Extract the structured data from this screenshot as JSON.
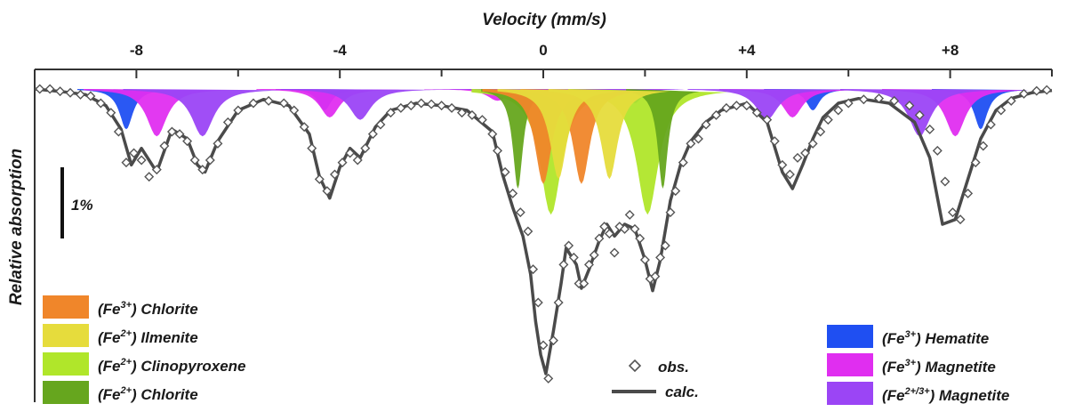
{
  "chart_data": {
    "type": "area",
    "title": "",
    "xlabel": "Velocity (mm/s)",
    "ylabel": "Relative absorption",
    "xlim": [
      -10,
      10
    ],
    "ylim": [
      0,
      6.6
    ],
    "x_ticks": [
      -8,
      -4,
      0,
      4,
      8
    ],
    "x_tick_labels": [
      "-8",
      "-4",
      "0",
      "+4",
      "+8"
    ],
    "x_minor_ticks": [
      -10,
      -6,
      -2,
      2,
      6,
      10
    ],
    "scale_bar": {
      "label": "1%",
      "value": 1
    },
    "legend_left": [
      {
        "ion": "Fe",
        "charge": "3+",
        "name": "Chlorite",
        "color": "#f0862a"
      },
      {
        "ion": "Fe",
        "charge": "2+",
        "name": "Ilmenite",
        "color": "#e6dc3c"
      },
      {
        "ion": "Fe",
        "charge": "2+",
        "name": "Clinopyroxene",
        "color": "#b0e62a"
      },
      {
        "ion": "Fe",
        "charge": "2+",
        "name": "Chlorite",
        "color": "#66a61e"
      }
    ],
    "legend_right": [
      {
        "ion": "Fe",
        "charge": "3+",
        "name": "Hematite",
        "color": "#1f4ff2"
      },
      {
        "ion": "Fe",
        "charge": "3+",
        "name": "Magnetite",
        "color": "#e02ef0"
      },
      {
        "ion": "Fe",
        "charge": "2+/3+",
        "name": "Magnetite",
        "color": "#9b45f5"
      }
    ],
    "legend_markers": [
      {
        "label": "obs.",
        "kind": "marker"
      },
      {
        "label": "calc.",
        "kind": "line"
      }
    ],
    "series": [
      {
        "name": "(Fe3+) Hematite",
        "kind": "sextet",
        "color": "#1f4ff2",
        "peaks": [
          [
            -8.2,
            0.85
          ],
          [
            -4.3,
            0.45
          ],
          [
            -0.5,
            0.3
          ],
          [
            1.8,
            0.3
          ],
          [
            5.3,
            0.45
          ],
          [
            8.6,
            0.85
          ]
        ],
        "width": 0.16
      },
      {
        "name": "(Fe3+) Magnetite",
        "kind": "sextet",
        "color": "#e02ef0",
        "peaks": [
          [
            -7.6,
            1.0
          ],
          [
            -4.2,
            0.6
          ],
          [
            -0.9,
            0.25
          ],
          [
            1.5,
            0.25
          ],
          [
            4.9,
            0.6
          ],
          [
            8.1,
            1.0
          ]
        ],
        "width": 0.24
      },
      {
        "name": "(Fe2+/3+) Magnetite",
        "kind": "sextet",
        "color": "#9b45f5",
        "peaks": [
          [
            -6.7,
            1.0
          ],
          [
            -3.6,
            0.65
          ],
          [
            -0.6,
            0.2
          ],
          [
            1.3,
            0.2
          ],
          [
            4.4,
            0.65
          ],
          [
            7.4,
            1.0
          ]
        ],
        "width": 0.26
      },
      {
        "name": "(Fe2+) Clinopyroxene",
        "kind": "doublet",
        "color": "#b0e62a",
        "peaks": [
          [
            0.15,
            2.65
          ],
          [
            2.05,
            2.65
          ]
        ],
        "width": 0.26
      },
      {
        "name": "(Fe2+) Chlorite",
        "kind": "doublet",
        "color": "#66a61e",
        "peaks": [
          [
            -0.5,
            2.1
          ],
          [
            2.35,
            2.1
          ]
        ],
        "width": 0.12
      },
      {
        "name": "(Fe3+) Chlorite",
        "kind": "doublet",
        "color": "#f0862a",
        "peaks": [
          [
            0.0,
            2.0
          ],
          [
            0.75,
            2.0
          ]
        ],
        "width": 0.2
      },
      {
        "name": "(Fe2+) Ilmenite",
        "kind": "doublet",
        "color": "#e6dc3c",
        "peaks": [
          [
            0.3,
            1.9
          ],
          [
            1.3,
            1.9
          ]
        ],
        "width": 0.2
      }
    ],
    "calc": {
      "name": "calc.",
      "x": [
        -10,
        -9.5,
        -9.0,
        -8.6,
        -8.3,
        -8.1,
        -7.9,
        -7.6,
        -7.3,
        -7.0,
        -6.8,
        -6.65,
        -6.4,
        -6.0,
        -5.5,
        -5.0,
        -4.6,
        -4.4,
        -4.2,
        -4.0,
        -3.8,
        -3.6,
        -3.3,
        -3.0,
        -2.5,
        -2.0,
        -1.5,
        -1.0,
        -0.8,
        -0.6,
        -0.4,
        -0.25,
        -0.15,
        -0.05,
        0.05,
        0.2,
        0.35,
        0.45,
        0.65,
        0.75,
        0.9,
        1.1,
        1.25,
        1.4,
        1.6,
        1.8,
        2.0,
        2.15,
        2.3,
        2.5,
        2.7,
        2.9,
        3.2,
        3.5,
        4.0,
        4.4,
        4.7,
        4.9,
        5.1,
        5.3,
        5.5,
        5.8,
        6.2,
        6.8,
        7.3,
        7.6,
        7.85,
        8.1,
        8.35,
        8.6,
        8.9,
        9.2,
        9.6,
        10
      ],
      "y": [
        0.0,
        0.05,
        0.12,
        0.35,
        0.85,
        1.6,
        1.25,
        1.75,
        0.85,
        1.05,
        1.6,
        1.75,
        1.1,
        0.45,
        0.22,
        0.35,
        0.95,
        1.85,
        2.3,
        1.65,
        1.25,
        1.45,
        0.8,
        0.45,
        0.3,
        0.35,
        0.45,
        0.9,
        1.8,
        2.5,
        3.1,
        3.9,
        4.9,
        5.6,
        6.0,
        5.1,
        4.1,
        3.35,
        3.7,
        4.2,
        3.8,
        3.2,
        2.85,
        3.1,
        2.85,
        2.95,
        3.6,
        4.25,
        3.6,
        2.35,
        1.6,
        1.1,
        0.7,
        0.45,
        0.3,
        0.7,
        1.75,
        2.1,
        1.6,
        1.05,
        0.6,
        0.3,
        0.2,
        0.3,
        0.7,
        1.45,
        2.85,
        2.75,
        1.9,
        1.05,
        0.45,
        0.2,
        0.08,
        0.03
      ]
    },
    "obs_points": {
      "name": "obs.",
      "x": [
        -9.9,
        -9.7,
        -9.5,
        -9.3,
        -9.1,
        -8.9,
        -8.7,
        -8.5,
        -8.35,
        -8.2,
        -8.05,
        -7.9,
        -7.75,
        -7.6,
        -7.45,
        -7.3,
        -7.15,
        -7.0,
        -6.85,
        -6.7,
        -6.55,
        -6.4,
        -6.2,
        -6.0,
        -5.7,
        -5.4,
        -5.1,
        -4.9,
        -4.7,
        -4.55,
        -4.4,
        -4.25,
        -4.1,
        -3.95,
        -3.8,
        -3.65,
        -3.5,
        -3.35,
        -3.2,
        -3.0,
        -2.8,
        -2.6,
        -2.4,
        -2.2,
        -2.0,
        -1.8,
        -1.6,
        -1.4,
        -1.2,
        -1.0,
        -0.9,
        -0.75,
        -0.6,
        -0.45,
        -0.3,
        -0.2,
        -0.1,
        0.0,
        0.1,
        0.2,
        0.3,
        0.4,
        0.5,
        0.6,
        0.7,
        0.8,
        0.9,
        1.0,
        1.1,
        1.2,
        1.3,
        1.4,
        1.5,
        1.6,
        1.7,
        1.8,
        1.9,
        2.0,
        2.1,
        2.2,
        2.3,
        2.4,
        2.5,
        2.6,
        2.75,
        2.9,
        3.05,
        3.2,
        3.4,
        3.6,
        3.8,
        4.0,
        4.2,
        4.4,
        4.55,
        4.7,
        4.85,
        5.0,
        5.15,
        5.3,
        5.45,
        5.6,
        5.8,
        6.0,
        6.3,
        6.6,
        6.9,
        7.2,
        7.4,
        7.6,
        7.75,
        7.9,
        8.05,
        8.2,
        8.35,
        8.5,
        8.65,
        8.8,
        9.0,
        9.2,
        9.45,
        9.7,
        9.9
      ],
      "y": [
        0.0,
        0.0,
        0.05,
        0.08,
        0.12,
        0.15,
        0.3,
        0.5,
        0.9,
        1.55,
        1.35,
        1.5,
        1.85,
        1.7,
        1.2,
        0.9,
        0.95,
        1.1,
        1.5,
        1.7,
        1.5,
        1.15,
        0.7,
        0.45,
        0.3,
        0.25,
        0.3,
        0.45,
        0.8,
        1.25,
        1.9,
        2.15,
        1.8,
        1.55,
        1.35,
        1.5,
        1.25,
        0.95,
        0.75,
        0.5,
        0.4,
        0.35,
        0.3,
        0.32,
        0.35,
        0.4,
        0.5,
        0.55,
        0.65,
        0.95,
        1.3,
        1.75,
        2.2,
        2.6,
        3.0,
        3.8,
        4.5,
        5.4,
        6.1,
        5.3,
        4.5,
        3.7,
        3.3,
        3.55,
        4.1,
        4.1,
        3.7,
        3.5,
        3.15,
        2.9,
        3.05,
        3.45,
        2.9,
        2.95,
        2.65,
        2.95,
        3.15,
        3.6,
        4.0,
        3.95,
        3.55,
        3.3,
        2.6,
        2.15,
        1.55,
        1.15,
        1.05,
        0.75,
        0.55,
        0.4,
        0.35,
        0.35,
        0.5,
        0.65,
        1.1,
        1.6,
        1.8,
        1.45,
        1.35,
        1.15,
        0.9,
        0.65,
        0.45,
        0.3,
        0.22,
        0.2,
        0.25,
        0.35,
        0.55,
        0.85,
        1.3,
        1.95,
        2.6,
        2.75,
        2.2,
        1.55,
        1.2,
        0.75,
        0.45,
        0.25,
        0.1,
        0.04,
        0.02
      ]
    }
  }
}
